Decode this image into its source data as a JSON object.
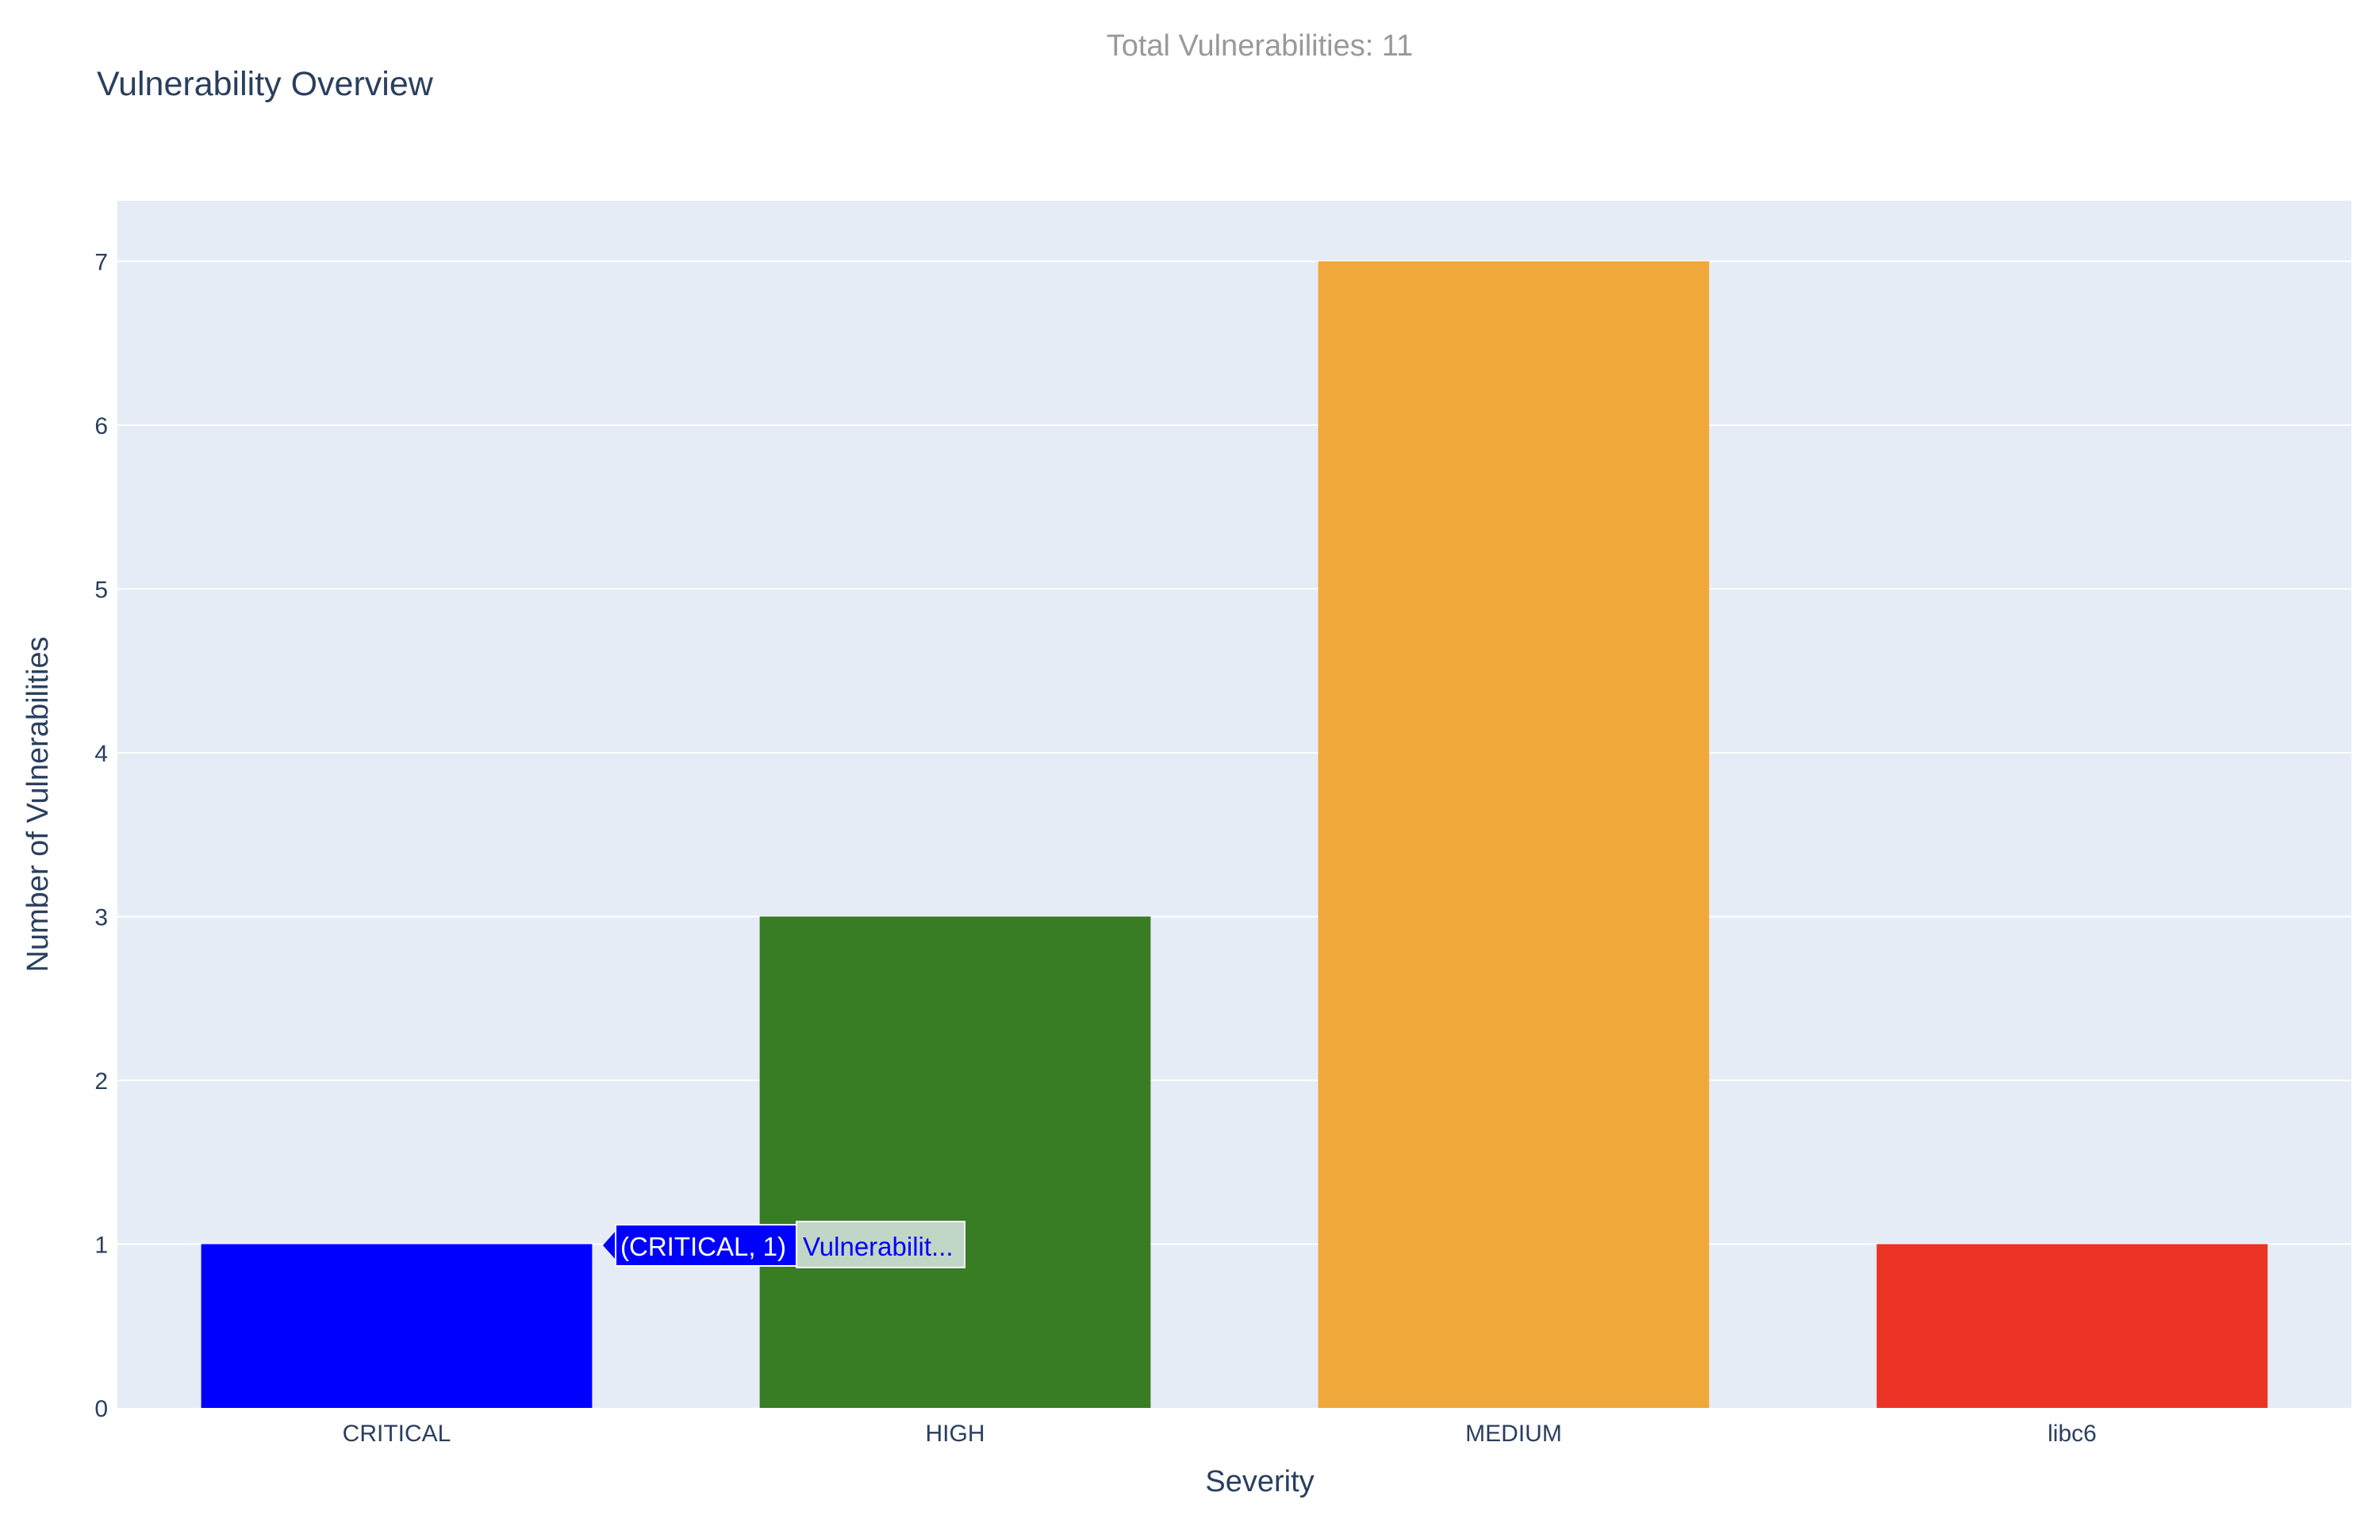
{
  "header": {
    "total_text": "Total Vulnerabilities: 11"
  },
  "colors": {
    "plot_background": "#e5ecf6",
    "gridline": "#ffffff",
    "text": "#2a3f5f",
    "subtitle_text": "#999999",
    "critical": "#0000ff",
    "high": "#387c23",
    "medium": "#f0a83b",
    "libc6": "#ea3324",
    "tooltip_box": "#0000ff",
    "tooltip_secondary_bg": "#c2d6c7",
    "tooltip_secondary_text": "#0000ff"
  },
  "tooltip": {
    "primary_text": "(CRITICAL, 1)",
    "secondary_text": "Vulnerabilit..."
  },
  "chart_data": {
    "type": "bar",
    "title": "Vulnerability Overview",
    "xlabel": "Severity",
    "ylabel": "Number of Vulnerabilities",
    "categories": [
      "CRITICAL",
      "HIGH",
      "MEDIUM",
      "libc6"
    ],
    "values": [
      1,
      3,
      7,
      1
    ],
    "ylim": [
      0,
      7.37
    ],
    "yticks": [
      0,
      1,
      2,
      3,
      4,
      5,
      6,
      7
    ],
    "grid": true,
    "legend": "none"
  }
}
